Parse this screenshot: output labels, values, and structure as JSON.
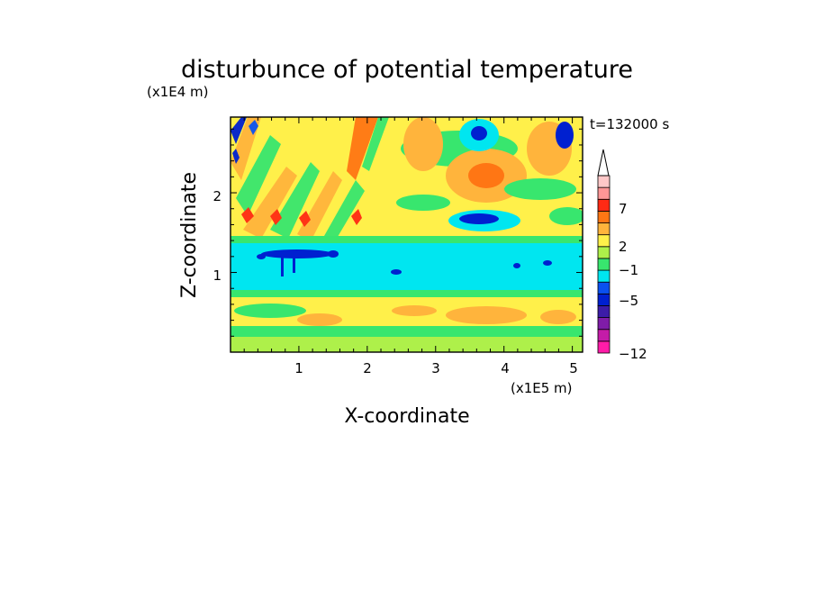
{
  "chart_data": {
    "type": "heatmap",
    "title": "disturbunce of potential temperature",
    "xlabel": "X-coordinate",
    "ylabel": "Z-coordinate",
    "x_unit": "(x1E5 m)",
    "y_unit": "(x1E4 m)",
    "time_label": "t=132000 s",
    "xlim": [
      0,
      5.15
    ],
    "ylim": [
      0,
      2.95
    ],
    "xticks": [
      "1",
      "2",
      "3",
      "4",
      "5"
    ],
    "yticks": [
      "1",
      "2"
    ],
    "colorbar": {
      "labels": [
        "7",
        "2",
        "−1",
        "−5",
        "−12"
      ],
      "colors": [
        "#ff1ca8",
        "#c41ca8",
        "#7f1ca8",
        "#3c1ca8",
        "#0020d0",
        "#0a50f0",
        "#00e6f0",
        "#38e66e",
        "#aef04a",
        "#fff04a",
        "#ffb43c",
        "#ff7614",
        "#ff2a14",
        "#ff9696",
        "#ffc8c8"
      ]
    }
  }
}
